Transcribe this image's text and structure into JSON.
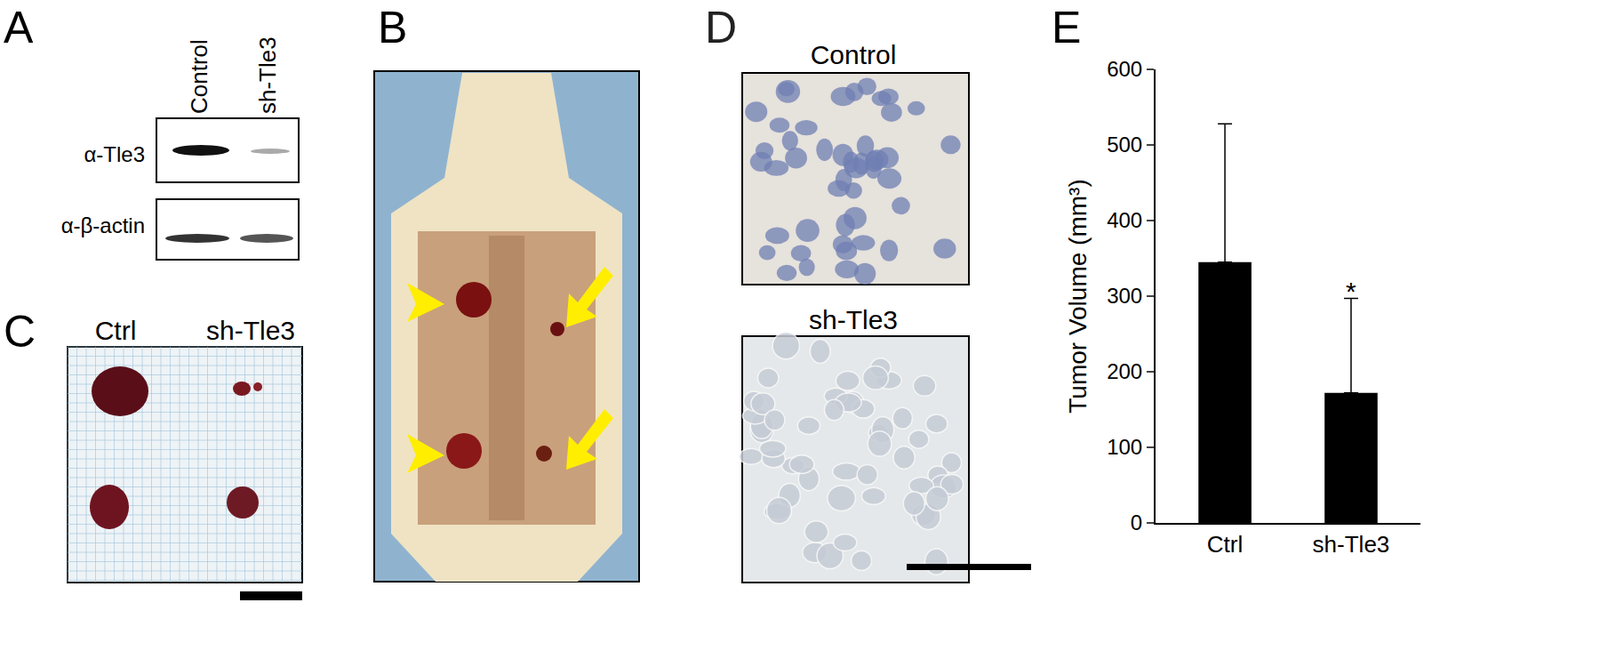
{
  "panels": {
    "A": {
      "label": "A",
      "lanes": [
        "Control",
        "sh-Tle3"
      ],
      "blots": [
        "α-Tle3",
        "α-β-actin"
      ]
    },
    "B": {
      "label": "B"
    },
    "C": {
      "label": "C",
      "columns": [
        "Ctrl",
        "sh-Tle3"
      ]
    },
    "D": {
      "label": "D",
      "images": [
        "Control",
        "sh-Tle3"
      ]
    },
    "E": {
      "label": "E"
    }
  },
  "chart_data": {
    "type": "bar",
    "categories": [
      "Ctrl",
      "sh-Tle3"
    ],
    "values": [
      345,
      172
    ],
    "error": [
      183,
      125
    ],
    "color": "#000000",
    "y_label": "Tumor Volume (mm³)",
    "ylim": [
      0,
      600
    ],
    "yticks": [
      0,
      100,
      200,
      300,
      400,
      500,
      600
    ],
    "grid": false,
    "annotations": [
      {
        "text": "*",
        "category": "sh-Tle3"
      }
    ]
  }
}
